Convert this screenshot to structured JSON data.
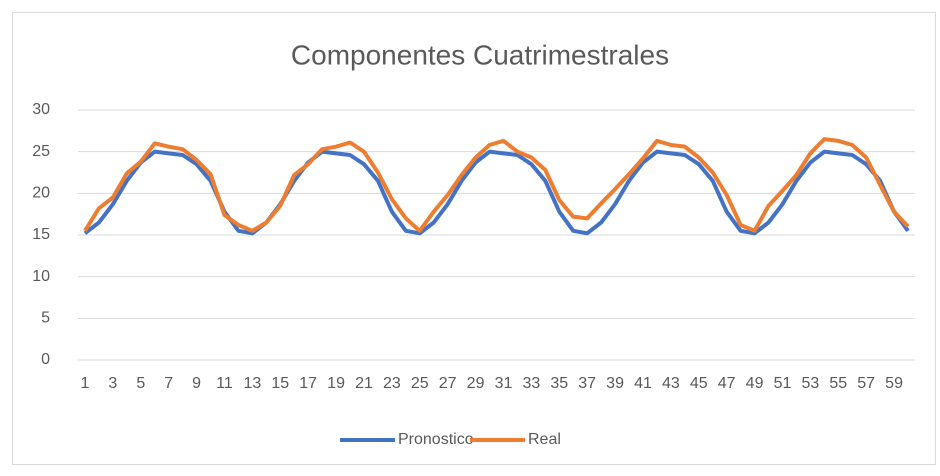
{
  "chart_data": {
    "type": "line",
    "title": "Componentes Cuatrimestrales",
    "categories": [
      1,
      null,
      3,
      null,
      5,
      null,
      7,
      null,
      9,
      null,
      11,
      null,
      13,
      null,
      15,
      null,
      17,
      null,
      19,
      null,
      21,
      null,
      23,
      null,
      25,
      null,
      27,
      null,
      29,
      null,
      31,
      null,
      33,
      null,
      35,
      null,
      37,
      null,
      39,
      null,
      41,
      null,
      43,
      null,
      45,
      null,
      47,
      null,
      49,
      null,
      51,
      null,
      53,
      null,
      55,
      null,
      57,
      null,
      59,
      null
    ],
    "series": [
      {
        "name": "Pronostico",
        "color": "#4472c4",
        "values": [
          15.2,
          16.5,
          18.7,
          21.5,
          23.7,
          25.0,
          24.8,
          24.6,
          23.5,
          21.5,
          17.8,
          15.5,
          15.2,
          16.5,
          18.7,
          21.5,
          23.7,
          25.0,
          24.8,
          24.6,
          23.5,
          21.5,
          17.8,
          15.5,
          15.2,
          16.5,
          18.7,
          21.5,
          23.7,
          25.0,
          24.8,
          24.6,
          23.5,
          21.5,
          17.8,
          15.5,
          15.2,
          16.5,
          18.7,
          21.5,
          23.7,
          25.0,
          24.8,
          24.6,
          23.5,
          21.5,
          17.8,
          15.5,
          15.2,
          16.5,
          18.7,
          21.5,
          23.7,
          25.0,
          24.8,
          24.6,
          23.5,
          21.5,
          17.8,
          15.5
        ]
      },
      {
        "name": "Real",
        "color": "#ed7d31",
        "values": [
          15.5,
          18.2,
          19.5,
          22.4,
          23.8,
          26.0,
          25.6,
          25.3,
          24.0,
          22.3,
          17.4,
          16.2,
          15.5,
          16.5,
          18.5,
          22.2,
          23.5,
          25.3,
          25.6,
          26.1,
          25.0,
          22.5,
          19.3,
          17.0,
          15.5,
          17.8,
          19.8,
          22.2,
          24.3,
          25.8,
          26.3,
          25.0,
          24.3,
          22.8,
          19.2,
          17.2,
          17.0,
          18.8,
          20.5,
          22.3,
          24.2,
          26.3,
          25.8,
          25.6,
          24.3,
          22.5,
          19.8,
          16.2,
          15.5,
          18.5,
          20.3,
          22.2,
          24.8,
          26.5,
          26.3,
          25.8,
          24.3,
          21.0,
          17.8,
          16.0
        ]
      }
    ],
    "ylim": [
      0,
      30
    ],
    "yticks": [
      0,
      5,
      10,
      15,
      20,
      25,
      30
    ],
    "grid": true,
    "legend": "bottom"
  }
}
